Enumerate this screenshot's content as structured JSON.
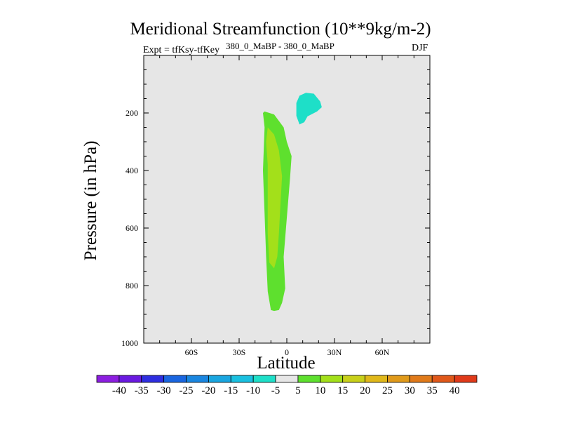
{
  "chart_data": {
    "type": "contour",
    "title": "Meridional Streamfunction (10**9kg/m-2)",
    "left_label": "Expt = tfKsy-tfKey",
    "center_label": "380_0_MaBP - 380_0_MaBP",
    "right_label": "DJF",
    "xlabel": "Latitude",
    "ylabel": "Pressure (in hPa)",
    "xlim": [
      -90,
      90
    ],
    "ylim": [
      1000,
      0
    ],
    "x_ticks": [
      {
        "value": -60,
        "label": "60S"
      },
      {
        "value": -30,
        "label": "30S"
      },
      {
        "value": 0,
        "label": "0"
      },
      {
        "value": 30,
        "label": "30N"
      },
      {
        "value": 60,
        "label": "60N"
      }
    ],
    "y_ticks": [
      {
        "value": 200,
        "label": "200"
      },
      {
        "value": 400,
        "label": "400"
      },
      {
        "value": 600,
        "label": "600"
      },
      {
        "value": 800,
        "label": "800"
      },
      {
        "value": 1000,
        "label": "1000"
      }
    ],
    "background_color": "#e6e6e6",
    "contours": [
      {
        "name": "positive-cell-5-10",
        "level_range": [
          5,
          10
        ],
        "color": "#5ee02e",
        "points": [
          [
            -14,
            195
          ],
          [
            -8,
            205
          ],
          [
            -2,
            250
          ],
          [
            0,
            300
          ],
          [
            3,
            350
          ],
          [
            2,
            430
          ],
          [
            -2,
            700
          ],
          [
            -1,
            810
          ],
          [
            -3,
            860
          ],
          [
            -5,
            885
          ],
          [
            -8,
            888
          ],
          [
            -10,
            885
          ],
          [
            -12,
            820
          ],
          [
            -13,
            700
          ],
          [
            -14,
            550
          ],
          [
            -15,
            400
          ],
          [
            -14,
            250
          ],
          [
            -15,
            200
          ]
        ]
      },
      {
        "name": "positive-cell-10-15",
        "level_range": [
          10,
          15
        ],
        "color": "#a3e01a",
        "points": [
          [
            -12,
            250
          ],
          [
            -8,
            275
          ],
          [
            -5,
            330
          ],
          [
            -3,
            420
          ],
          [
            -4,
            520
          ],
          [
            -5,
            620
          ],
          [
            -6,
            700
          ],
          [
            -8,
            740
          ],
          [
            -11,
            720
          ],
          [
            -12,
            620
          ],
          [
            -12,
            500
          ],
          [
            -12,
            380
          ],
          [
            -13,
            300
          ]
        ]
      },
      {
        "name": "negative-cell-minus10-minus5",
        "level_range": [
          -10,
          -5
        ],
        "color": "#1edfc8",
        "points": [
          [
            12,
            130
          ],
          [
            17,
            133
          ],
          [
            21,
            160
          ],
          [
            22,
            180
          ],
          [
            19,
            195
          ],
          [
            13,
            212
          ],
          [
            11,
            232
          ],
          [
            8,
            240
          ],
          [
            6,
            210
          ],
          [
            6,
            165
          ],
          [
            8,
            140
          ]
        ]
      }
    ],
    "colorbar": {
      "levels": [
        -40,
        -35,
        -30,
        -25,
        -20,
        -15,
        -10,
        -5,
        5,
        10,
        15,
        20,
        25,
        30,
        35,
        40
      ],
      "colors": [
        "#8c1ee0",
        "#6a1ae0",
        "#2e2ee0",
        "#1a66e0",
        "#1a86e0",
        "#1aa6e0",
        "#1ac0e0",
        "#1edfc8",
        "#e6e6e6",
        "#5ee02e",
        "#a3e01a",
        "#c8d01a",
        "#e0b81a",
        "#e09a1a",
        "#e07a1a",
        "#e0581a",
        "#e03a1a"
      ]
    }
  }
}
